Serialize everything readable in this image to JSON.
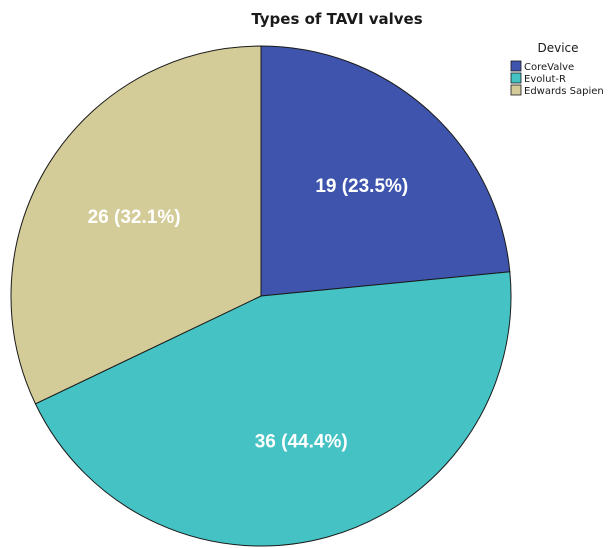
{
  "chart_data": {
    "type": "pie",
    "title": "Types of TAVI valves",
    "legend_title": "Device",
    "legend_position": "top-right",
    "slices": [
      {
        "label": "CoreValve",
        "value": 19,
        "data_label": "19 (23.5%)",
        "color": "#3f55ad"
      },
      {
        "label": "Evolut-R",
        "value": 36,
        "data_label": "36 (44.4%)",
        "color": "#45c2c4"
      },
      {
        "label": "Edwards Sapien",
        "value": 26,
        "data_label": "26 (32.1%)",
        "color": "#d3cb98"
      }
    ]
  }
}
